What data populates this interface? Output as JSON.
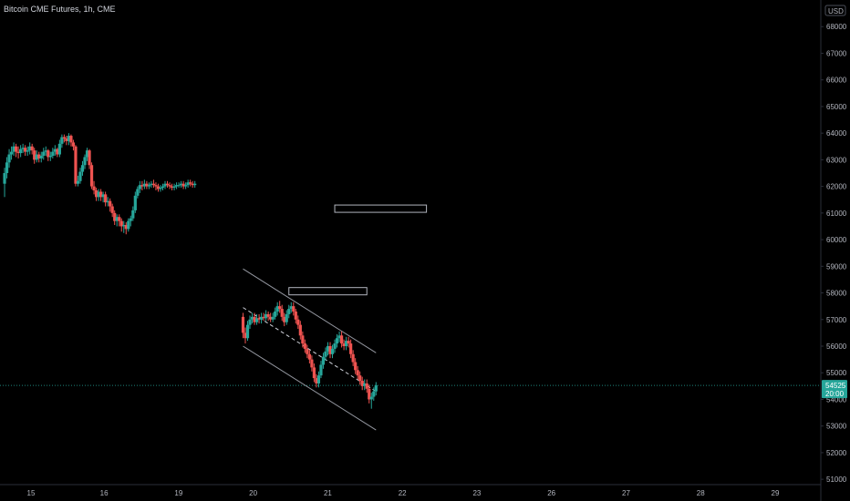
{
  "header": {
    "title": "Bitcoin CME Futures, 1h, CME"
  },
  "colors": {
    "background": "#000000",
    "up": "#26a69a",
    "down": "#ef5350",
    "text": "#b2b5be",
    "axis_line": "#2a2e39",
    "channel_line": "#9598a1",
    "channel_mid": "#d1d4dc",
    "box_outline": "#b2b5be",
    "price_tag": "#26a69a"
  },
  "chart_data": {
    "type": "candlestick",
    "currency": "USD",
    "ylim": [
      50800,
      69000
    ],
    "y_ticks": [
      51000,
      52000,
      53000,
      54000,
      55000,
      56000,
      57000,
      58000,
      59000,
      60000,
      61000,
      62000,
      63000,
      64000,
      65000,
      66000,
      67000,
      68000,
      69000
    ],
    "y_tick_labels": [
      "51000",
      "52000",
      "53000",
      "54000",
      "55000",
      "56000",
      "57000",
      "58000",
      "59000",
      "60000",
      "61000",
      "62000",
      "63000",
      "64000",
      "65000",
      "66000",
      "67000",
      "68000",
      "69000"
    ],
    "x_ticks": [
      15,
      16,
      19,
      20,
      21,
      22,
      23,
      26,
      27,
      28,
      29
    ],
    "x_tick_labels": [
      "15",
      "16",
      "19",
      "20",
      "21",
      "22",
      "23",
      "26",
      "27",
      "28",
      "29"
    ],
    "last_price": {
      "value": 54525,
      "label": "54525",
      "countdown": "20:00"
    },
    "series": [
      {
        "segment": "week-1",
        "x": [
          0.0,
          0.5,
          1.0,
          1.5,
          2.0,
          2.5,
          3.0,
          3.5,
          4.0,
          4.5,
          5.0,
          5.5,
          6.0,
          6.5,
          7.0,
          7.5,
          8.0,
          8.5,
          9.0,
          9.5,
          10.0,
          10.5,
          11.0,
          11.5,
          12.0,
          12.5,
          13.0,
          13.5,
          14.0,
          14.5,
          15.0,
          15.5,
          16.0,
          16.5,
          17.0,
          17.5,
          18.0,
          18.5,
          19.0,
          19.5,
          20.0,
          20.5,
          21.0,
          21.5,
          22.0,
          22.5,
          23.0,
          23.5,
          24.0,
          24.5,
          25.0,
          25.5,
          26.0,
          26.5,
          27.0,
          27.5,
          28.0,
          28.5,
          29.0,
          29.5,
          30.0,
          30.5,
          31.0,
          31.5,
          32.0,
          32.5,
          33.0,
          33.5,
          34.0,
          34.5,
          35.0,
          35.5,
          36.0,
          36.5,
          37.0,
          37.5,
          38.0,
          38.5,
          39.0,
          39.5,
          40.0,
          40.5,
          41.0,
          41.5
        ],
        "open": [
          62100,
          62500,
          62900,
          63200,
          63300,
          63500,
          63300,
          63250,
          63400,
          63450,
          63300,
          63350,
          63500,
          63350,
          63000,
          63200,
          63050,
          63150,
          63300,
          63350,
          63100,
          63150,
          63300,
          63400,
          63200,
          63600,
          63850,
          63800,
          63700,
          63900,
          63650,
          63500,
          62100,
          62200,
          62550,
          62800,
          63100,
          63350,
          62800,
          62000,
          61850,
          61600,
          61800,
          61600,
          61700,
          61400,
          61450,
          61250,
          61000,
          60700,
          60850,
          60700,
          60500,
          60550,
          60400,
          60700,
          60800,
          61100,
          61650,
          61900,
          62050,
          62000,
          62100,
          62000,
          62050,
          62100,
          62050,
          62000,
          61900,
          61950,
          62000,
          62100,
          62050,
          62000,
          61950,
          62000,
          62050,
          62050,
          62100,
          62000,
          62050,
          62150,
          62100,
          62050
        ],
        "close": [
          62500,
          62900,
          63200,
          63300,
          63500,
          63300,
          63250,
          63400,
          63450,
          63300,
          63350,
          63500,
          63350,
          63000,
          63200,
          63050,
          63150,
          63300,
          63350,
          63100,
          63150,
          63300,
          63400,
          63200,
          63600,
          63850,
          63800,
          63700,
          63900,
          63650,
          63500,
          62100,
          62200,
          62550,
          62800,
          63100,
          63350,
          62800,
          62000,
          61850,
          61600,
          61800,
          61600,
          61700,
          61400,
          61450,
          61250,
          61000,
          60700,
          60850,
          60700,
          60500,
          60550,
          60400,
          60700,
          60800,
          61100,
          61650,
          61900,
          62050,
          62000,
          62100,
          62000,
          62050,
          62100,
          62050,
          62000,
          61900,
          61950,
          62000,
          62100,
          62050,
          62000,
          61950,
          62000,
          62050,
          62050,
          62100,
          62000,
          62050,
          62150,
          62100,
          62050,
          62100
        ],
        "high": [
          62700,
          63100,
          63400,
          63500,
          63650,
          63600,
          63500,
          63550,
          63600,
          63550,
          63500,
          63650,
          63600,
          63450,
          63350,
          63300,
          63300,
          63450,
          63500,
          63400,
          63300,
          63450,
          63550,
          63450,
          63750,
          63950,
          63950,
          63900,
          64000,
          63950,
          63750,
          63550,
          62400,
          62700,
          62950,
          63200,
          63450,
          63400,
          62900,
          62200,
          61950,
          61900,
          61900,
          61800,
          61800,
          61600,
          61550,
          61350,
          61100,
          60950,
          60950,
          60800,
          60700,
          60650,
          60800,
          60900,
          61250,
          61800,
          62000,
          62200,
          62200,
          62250,
          62200,
          62150,
          62200,
          62250,
          62150,
          62100,
          62050,
          62100,
          62200,
          62200,
          62150,
          62100,
          62100,
          62150,
          62150,
          62200,
          62200,
          62150,
          62250,
          62250,
          62200,
          62200
        ],
        "low": [
          61600,
          62300,
          62700,
          63000,
          63150,
          63100,
          63050,
          63100,
          63250,
          63150,
          63150,
          63200,
          63200,
          62850,
          62900,
          62900,
          62900,
          63000,
          63150,
          62950,
          62950,
          63050,
          63150,
          63100,
          63100,
          63450,
          63650,
          63550,
          63550,
          63500,
          63350,
          62000,
          62000,
          62100,
          62400,
          62650,
          62950,
          62650,
          61900,
          61700,
          61450,
          61450,
          61450,
          61400,
          61250,
          61250,
          61050,
          60850,
          60550,
          60500,
          60500,
          60300,
          60250,
          60200,
          60300,
          60500,
          60700,
          61000,
          61550,
          61750,
          61850,
          61900,
          61900,
          61900,
          61950,
          61950,
          61850,
          61800,
          61800,
          61850,
          61900,
          61950,
          61900,
          61850,
          61850,
          61900,
          61950,
          61950,
          61900,
          61900,
          61950,
          62000,
          61950,
          61950
        ]
      },
      {
        "segment": "week-2",
        "x": [
          52.0,
          52.5,
          53.0,
          53.5,
          54.0,
          54.5,
          55.0,
          55.5,
          56.0,
          56.5,
          57.0,
          57.5,
          58.0,
          58.5,
          59.0,
          59.5,
          60.0,
          60.5,
          61.0,
          61.5,
          62.0,
          62.5,
          63.0,
          63.5,
          64.0,
          64.5,
          65.0,
          65.5,
          66.0,
          66.5,
          67.0,
          67.5,
          68.0,
          68.5,
          69.0,
          69.5,
          70.0,
          70.5,
          71.0,
          71.5,
          72.0,
          72.5,
          73.0,
          73.5,
          74.0,
          74.5,
          75.0,
          75.5,
          76.0,
          76.5,
          77.0,
          77.5,
          78.0,
          78.5,
          79.0,
          79.5,
          80.0,
          80.5,
          81.0
        ],
        "open": [
          57100,
          56500,
          56300,
          56800,
          57000,
          57100,
          56900,
          57050,
          57000,
          57100,
          57050,
          57200,
          57100,
          57000,
          57100,
          57300,
          57500,
          57400,
          57100,
          56900,
          57200,
          57400,
          57500,
          57300,
          57000,
          56800,
          56400,
          56100,
          55900,
          55700,
          55500,
          55200,
          54800,
          54600,
          54900,
          55300,
          55600,
          55800,
          56000,
          55700,
          55900,
          56100,
          56300,
          56400,
          56100,
          56000,
          56200,
          56100,
          55700,
          55400,
          55100,
          54900,
          54700,
          54500,
          54600,
          54400,
          54000,
          54100,
          54300
        ],
        "close": [
          56500,
          56300,
          56800,
          57000,
          57100,
          56900,
          57050,
          57000,
          57100,
          57050,
          57200,
          57100,
          57000,
          57100,
          57300,
          57500,
          57400,
          57100,
          56900,
          57200,
          57400,
          57500,
          57300,
          57000,
          56800,
          56400,
          56100,
          55900,
          55700,
          55500,
          55200,
          54800,
          54600,
          54900,
          55300,
          55600,
          55800,
          56000,
          55700,
          55900,
          56100,
          56300,
          56400,
          56100,
          56000,
          56200,
          56100,
          55700,
          55400,
          55100,
          54900,
          54700,
          54500,
          54600,
          54400,
          54000,
          54100,
          54300,
          54525
        ],
        "high": [
          57250,
          56700,
          56950,
          57150,
          57250,
          57250,
          57200,
          57200,
          57250,
          57250,
          57350,
          57300,
          57250,
          57250,
          57450,
          57650,
          57700,
          57550,
          57250,
          57350,
          57550,
          57650,
          57650,
          57400,
          57150,
          56950,
          56550,
          56250,
          56050,
          55850,
          55650,
          55350,
          54950,
          55050,
          55450,
          55750,
          55950,
          56150,
          56150,
          56050,
          56250,
          56450,
          56550,
          56550,
          56250,
          56350,
          56350,
          56250,
          55850,
          55550,
          55250,
          55050,
          54850,
          54750,
          54750,
          54550,
          54250,
          54450,
          54650
        ],
        "low": [
          56300,
          56100,
          56200,
          56650,
          56850,
          56800,
          56800,
          56850,
          56850,
          56950,
          56950,
          56950,
          56900,
          56900,
          57000,
          57150,
          57250,
          56950,
          56750,
          56800,
          57050,
          57250,
          57150,
          56850,
          56650,
          56250,
          55950,
          55750,
          55550,
          55350,
          55050,
          54650,
          54450,
          54450,
          54800,
          55150,
          55450,
          55650,
          55550,
          55550,
          55750,
          55950,
          56150,
          55950,
          55850,
          55850,
          55950,
          55550,
          55250,
          54950,
          54750,
          54550,
          54350,
          54350,
          54250,
          53850,
          53650,
          53950,
          54150
        ]
      }
    ],
    "annotations": {
      "regression_channel": {
        "x_start": 52,
        "x_end": 81,
        "mid": [
          57450,
          54300
        ],
        "upper": [
          58900,
          55750
        ],
        "lower": [
          56000,
          52850
        ]
      },
      "boxes": [
        {
          "x_start": 72,
          "x_end": 92,
          "top": 61300,
          "bottom": 61150
        },
        {
          "x_start": 62,
          "x_end": 79,
          "top": 58200,
          "bottom": 58050
        }
      ],
      "last_price_line": 54525
    },
    "x_range": [
      -1,
      178
    ]
  }
}
